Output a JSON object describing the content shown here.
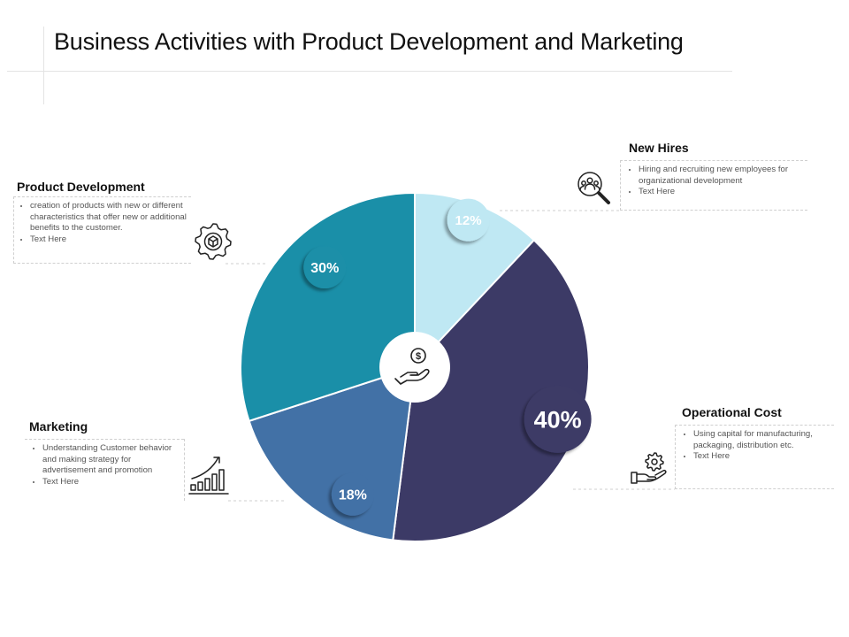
{
  "title": "Business Activities with Product Development and Marketing",
  "chart_data": {
    "type": "pie",
    "categories": [
      "New Hires",
      "Operational Cost",
      "Marketing",
      "Product Development"
    ],
    "values": [
      12,
      40,
      18,
      30
    ],
    "value_labels": [
      "12%",
      "40%",
      "18%",
      "30%"
    ],
    "colors": [
      "#bfe8f3",
      "#3c3a66",
      "#4271a6",
      "#1a8fa8"
    ],
    "center_icon": "hand-dollar-icon"
  },
  "sections": {
    "new_hires": {
      "heading": "New Hires",
      "bullets": [
        "Hiring and recruiting new employees for organizational development",
        "Text Here"
      ],
      "icon": "people-search-icon"
    },
    "product_development": {
      "heading": "Product Development",
      "bullets": [
        "creation of products with new or different characteristics that offer new or additional benefits to the customer.",
        "Text Here"
      ],
      "icon": "gear-box-icon"
    },
    "marketing": {
      "heading": "Marketing",
      "bullets": [
        "Understanding Customer behavior and making strategy for advertisement and promotion",
        "Text Here"
      ],
      "icon": "growth-chart-icon"
    },
    "operational_cost": {
      "heading": "Operational Cost",
      "bullets": [
        "Using capital for manufacturing, packaging, distribution etc.",
        "Text Here"
      ],
      "icon": "hand-gear-icon"
    }
  }
}
